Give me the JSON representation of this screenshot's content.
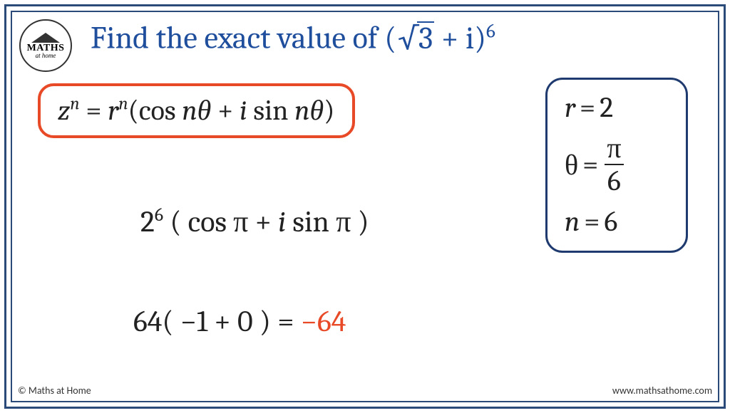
{
  "frame": {
    "outer_border_color": "#2a4a7a",
    "inner_border_color": "#2a4a7a",
    "background": "#ffffff"
  },
  "logo": {
    "line1": "MATHS",
    "line2_prefix": "at",
    "line2_word": "home"
  },
  "title": {
    "prefix": "Find the exact value of ",
    "expr_base_open": "(",
    "expr_radicand": "3",
    "expr_plus": " + ",
    "expr_i": "i",
    "expr_base_close": ")",
    "expr_exponent": "6",
    "color": "#1f4e9c",
    "fontsize": 44
  },
  "formula": {
    "lhs_var": "z",
    "lhs_exp": "n",
    "eq": " = ",
    "r": "r",
    "r_exp": "n",
    "open": "(",
    "cos": "cos ",
    "ntheta1": "nθ",
    "plus": " + ",
    "i": "i ",
    "sin": "sin ",
    "ntheta2": "nθ",
    "close": ")",
    "border_color": "#e84a27",
    "fontsize": 40
  },
  "values": {
    "r_label": "r",
    "r_eq": " = ",
    "r_val": "2",
    "theta_label": "θ",
    "theta_eq": " = ",
    "theta_num": "π",
    "theta_den": "6",
    "n_label": "n",
    "n_eq": " = ",
    "n_val": "6",
    "border_color": "#1f3a6e",
    "fontsize": 40
  },
  "step2": {
    "base": "2",
    "exp": "6",
    "open": " ( ",
    "cos": "cos ",
    "arg1": "π",
    "plus": " + ",
    "i": "i ",
    "sin": "sin ",
    "arg2": "π",
    "close": " )",
    "fontsize": 42
  },
  "step3": {
    "coeff": "64",
    "open": "( ",
    "t1": "−1",
    "plus": " + ",
    "t2": "0",
    "close": " ) ",
    "eq": "=  ",
    "answer": "−64",
    "answer_color": "#e84a27",
    "fontsize": 42
  },
  "footer": {
    "left": "© Maths at Home",
    "right": "www.mathsathome.com"
  }
}
